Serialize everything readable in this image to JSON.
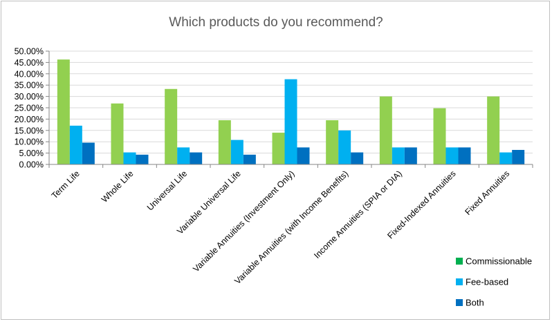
{
  "chart_data": {
    "type": "bar",
    "title": "Which products do you recommend?",
    "xlabel": "",
    "ylabel": "",
    "ylim": [
      0,
      50
    ],
    "y_tick_labels": [
      "0.00%",
      "5.00%",
      "10.00%",
      "15.00%",
      "20.00%",
      "25.00%",
      "30.00%",
      "35.00%",
      "40.00%",
      "45.00%",
      "50.00%"
    ],
    "grid": true,
    "legend_position": "bottom-right",
    "categories": [
      "Term Life",
      "Whole Life",
      "Universal Life",
      "Variable Universal Life",
      "Variable Annuities (Investment Only)",
      "Variable Annuities (with Income Benefits)",
      "Income Annuities (SPIA or DIA)",
      "Fixed-Indexed Annuities",
      "Fixed Annuities"
    ],
    "series": [
      {
        "name": "Commissionable",
        "color": "#92d050",
        "legend_color": "#00b050",
        "values": [
          46.3,
          26.9,
          33.3,
          19.5,
          14.0,
          19.5,
          30.0,
          24.8,
          30.0
        ]
      },
      {
        "name": "Fee-based",
        "color": "#00b0f0",
        "legend_color": "#00b0f0",
        "values": [
          17.1,
          5.3,
          7.5,
          10.8,
          37.6,
          15.0,
          7.5,
          7.5,
          5.3
        ]
      },
      {
        "name": "Both",
        "color": "#0070c0",
        "legend_color": "#0070c0",
        "values": [
          9.6,
          4.3,
          5.3,
          4.3,
          7.5,
          5.3,
          7.5,
          7.5,
          6.4
        ]
      }
    ]
  }
}
